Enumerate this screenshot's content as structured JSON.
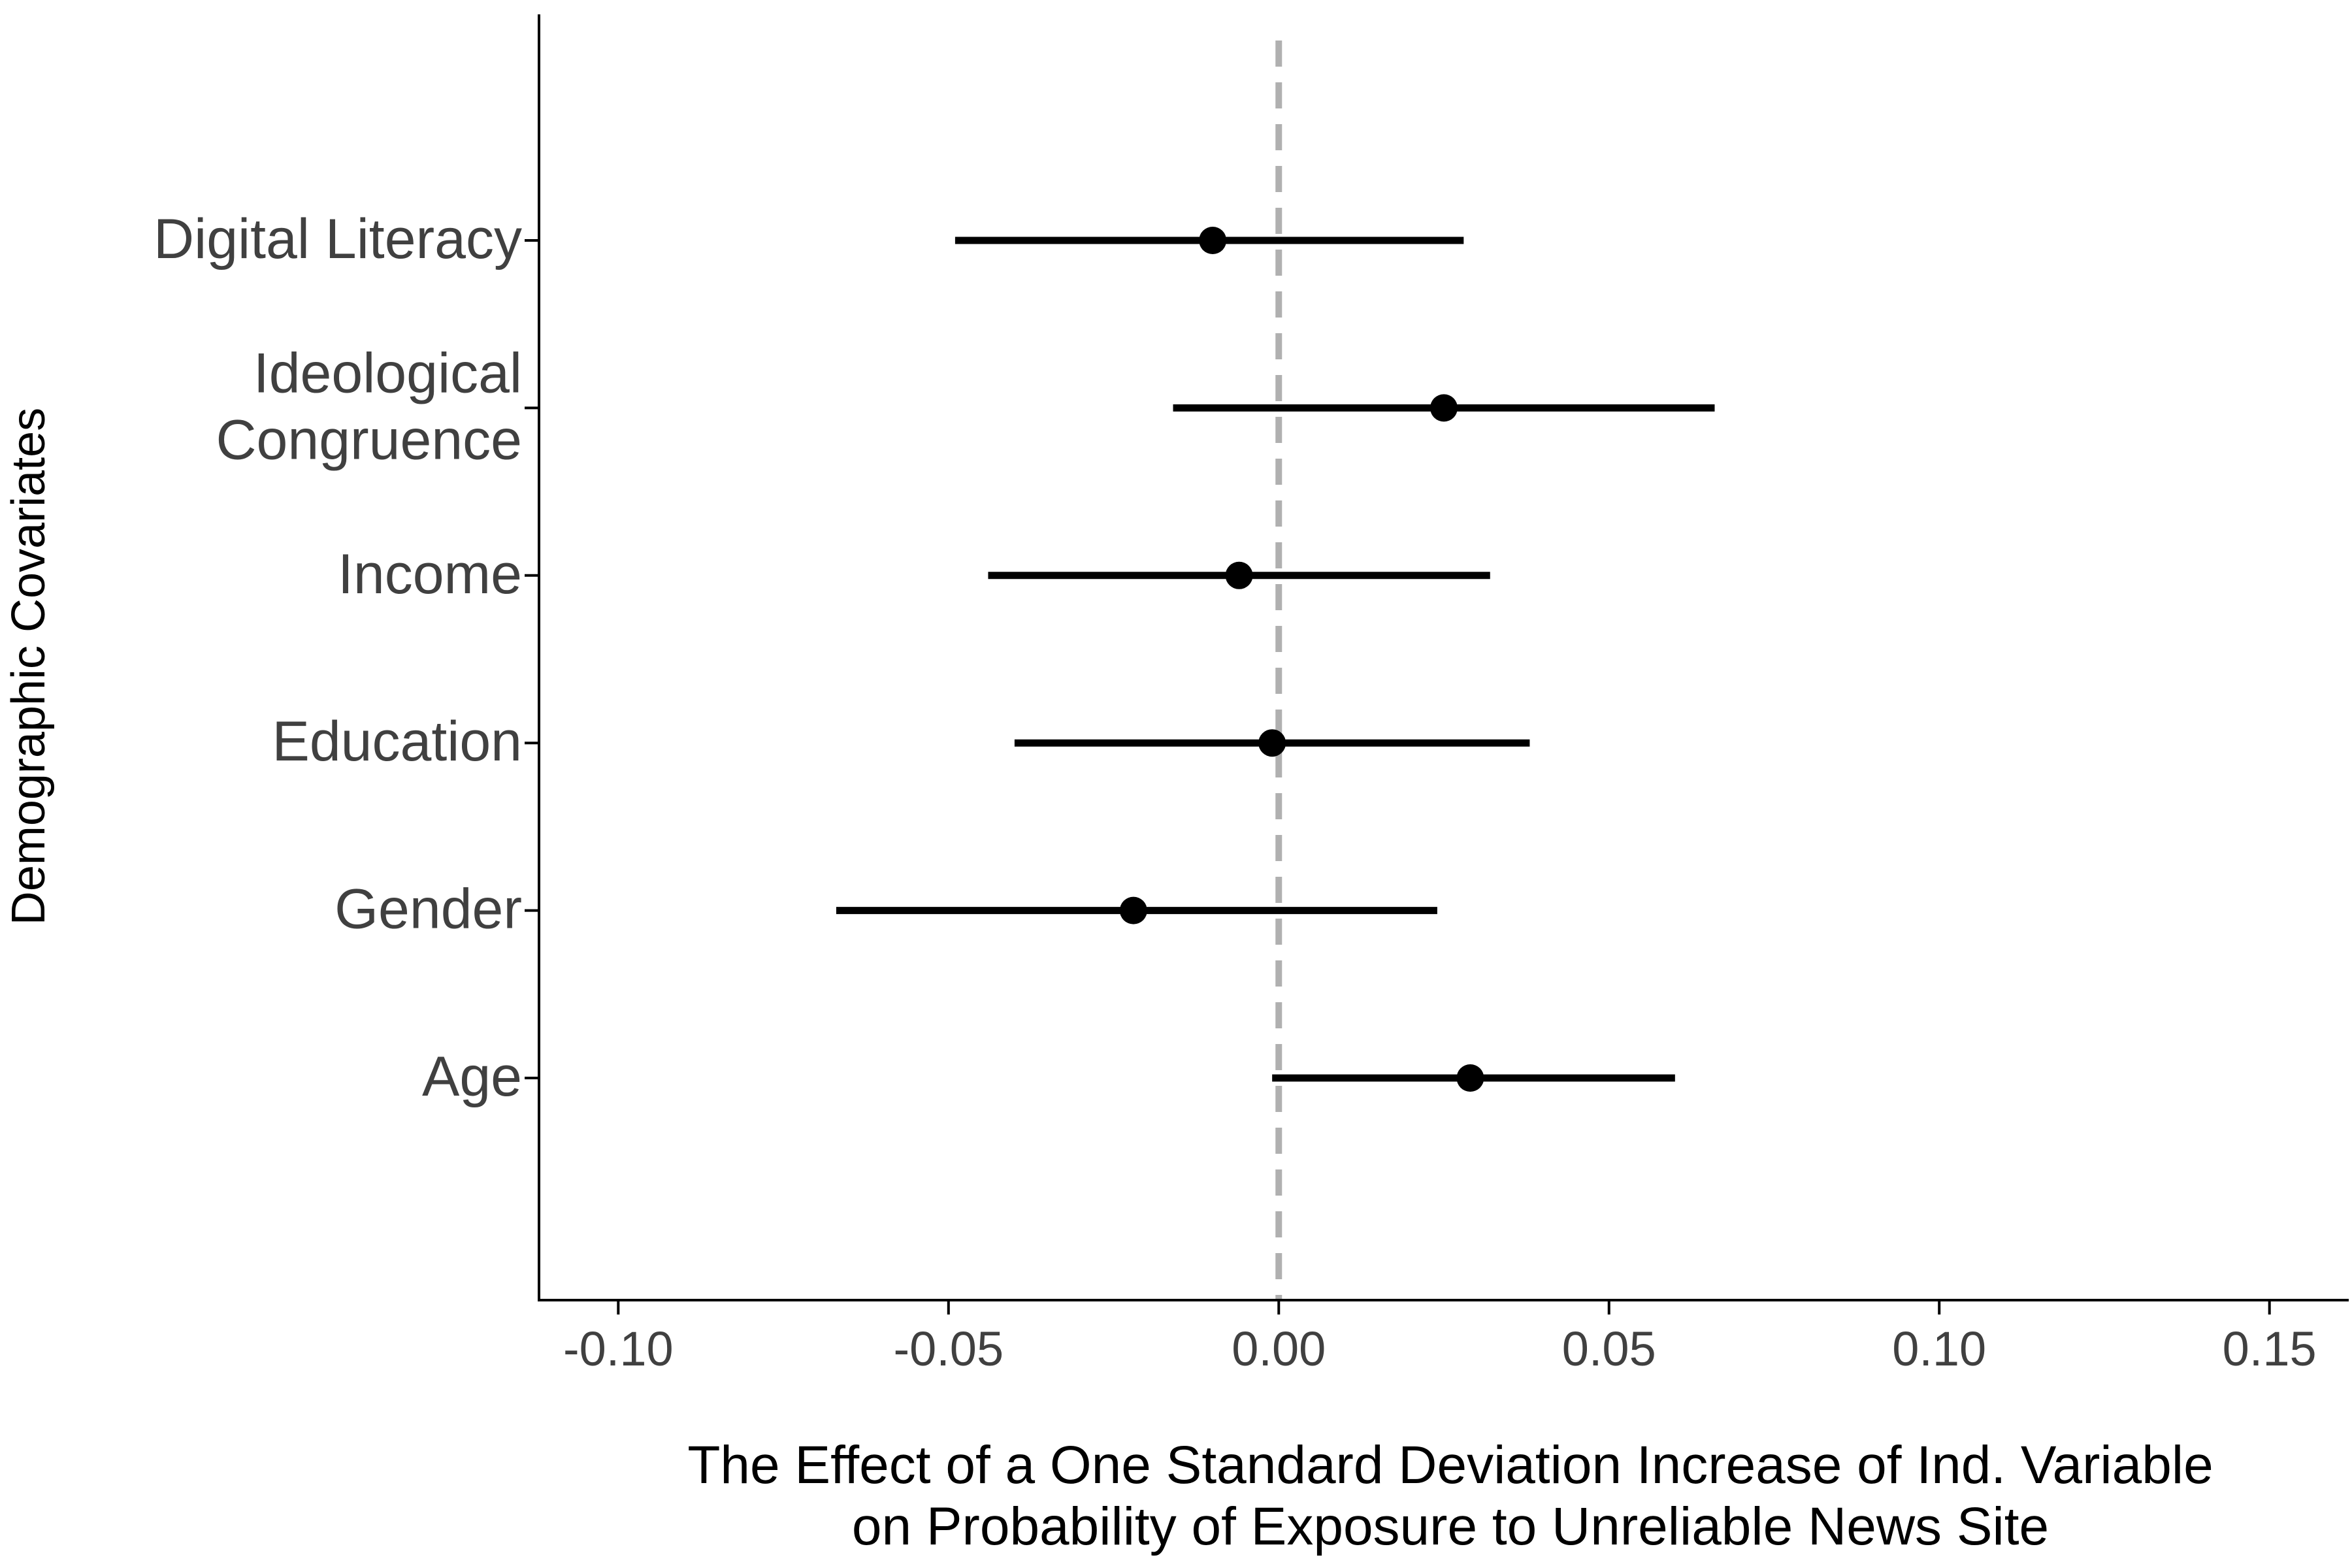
{
  "chart_data": {
    "type": "coefficient-plot",
    "xlabel": [
      "The Effect of a One Standard Deviation Increase of Ind. Variable",
      "on Probability of Exposure to Unreliable News Site"
    ],
    "ylabel": "Demographic Covariates",
    "xlim": [
      -0.112,
      0.162
    ],
    "x_ticks": [
      -0.1,
      -0.05,
      0.0,
      0.05,
      0.1,
      0.15
    ],
    "x_tick_labels": [
      "-0.10",
      "-0.05",
      "0.00",
      "0.05",
      "0.10",
      "0.15"
    ],
    "reference_line": 0,
    "grid": false,
    "points": [
      {
        "label": [
          "Age"
        ],
        "estimate": 0.029,
        "lower": -0.001,
        "upper": 0.06
      },
      {
        "label": [
          "Gender"
        ],
        "estimate": -0.022,
        "lower": -0.067,
        "upper": 0.024
      },
      {
        "label": [
          "Education"
        ],
        "estimate": -0.001,
        "lower": -0.04,
        "upper": 0.038
      },
      {
        "label": [
          "Income"
        ],
        "estimate": -0.006,
        "lower": -0.044,
        "upper": 0.032
      },
      {
        "label": [
          "Ideological",
          "Congruence"
        ],
        "estimate": 0.025,
        "lower": -0.016,
        "upper": 0.066
      },
      {
        "label": [
          "Digital Literacy"
        ],
        "estimate": -0.01,
        "lower": -0.049,
        "upper": 0.028
      }
    ],
    "colors": {
      "point": "#000000",
      "reference_line": "#b0b0b0",
      "axis": "#000000",
      "tick_text": "#404040"
    }
  }
}
